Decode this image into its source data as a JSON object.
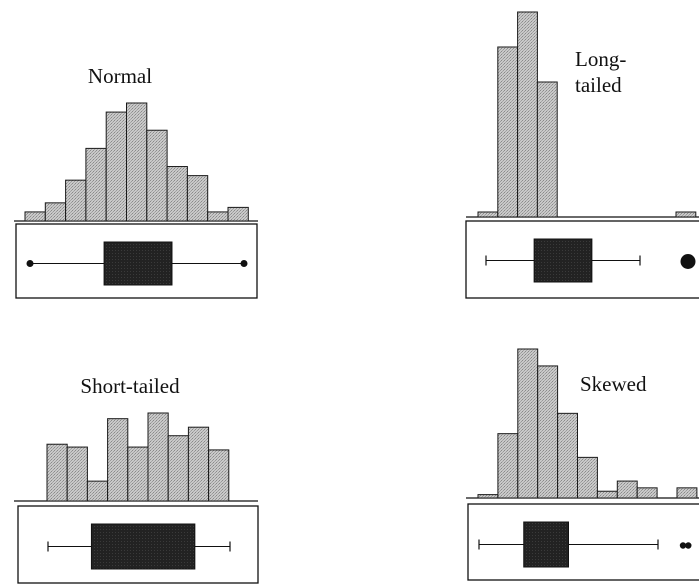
{
  "chart_data": [
    {
      "type": "histogram",
      "title": "Normal",
      "bin_heights": [
        2,
        4,
        9,
        16,
        24,
        26,
        20,
        12,
        10,
        2,
        3
      ],
      "boxplot": {
        "min": 0.6,
        "q1": 4.2,
        "median": 5.5,
        "q3": 7.5,
        "max": 11.0
      },
      "outliers": []
    },
    {
      "type": "histogram",
      "title": "Long-\ntailed",
      "bin_heights": [
        1,
        34,
        41,
        27,
        0,
        0,
        0,
        0,
        0,
        0,
        1
      ],
      "boxplot": {
        "min": 0.4,
        "q1": 1.4,
        "median": 2.0,
        "q3": 2.6,
        "max": 3.6
      },
      "outliers": [
        10.5
      ]
    },
    {
      "type": "histogram",
      "title": "Short-tailed",
      "bin_heights": [
        20,
        19,
        7,
        29,
        19,
        31,
        23,
        26,
        18
      ],
      "boxplot": {
        "min": 0.2,
        "q1": 2.3,
        "median": 4.5,
        "q3": 7.3,
        "max": 9.0
      },
      "outliers": []
    },
    {
      "type": "histogram",
      "title": "Skewed",
      "bin_heights": [
        1,
        19,
        44,
        39,
        25,
        12,
        2,
        5,
        3,
        0,
        3
      ],
      "boxplot": {
        "min": 0.0,
        "q1": 2.0,
        "median": 3.0,
        "q3": 4.0,
        "max": 8.0
      },
      "outliers": [
        9.6,
        9.85
      ]
    }
  ]
}
